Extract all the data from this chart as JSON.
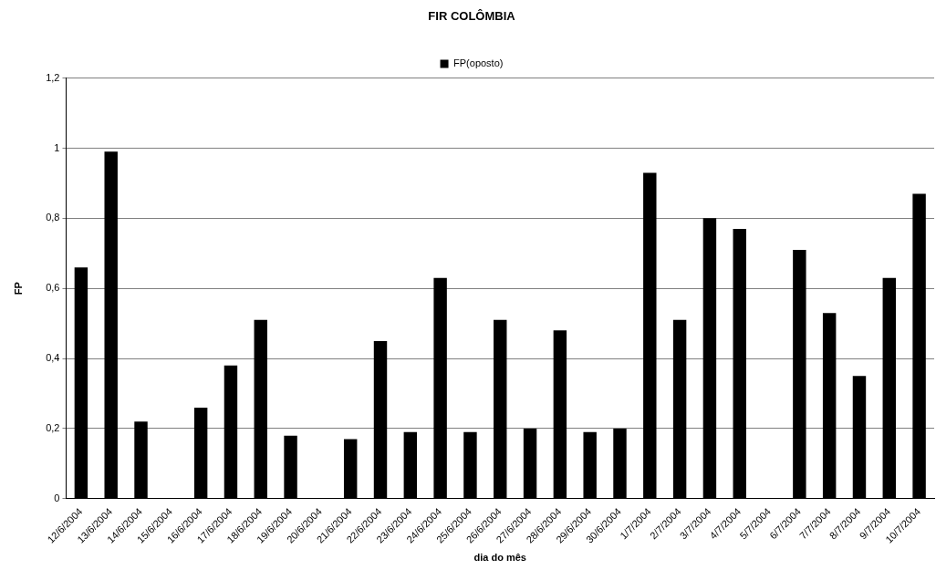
{
  "chart_data": {
    "type": "bar",
    "title": "FIR COLÔMBIA",
    "xlabel": "dia do mês",
    "ylabel": "FP",
    "categories": [
      "12/6/2004",
      "13/6/2004",
      "14/6/2004",
      "15/6/2004",
      "16/6/2004",
      "17/6/2004",
      "18/6/2004",
      "19/6/2004",
      "20/6/2004",
      "21/6/2004",
      "22/6/2004",
      "23/6/2004",
      "24/6/2004",
      "25/6/2004",
      "26/6/2004",
      "27/6/2004",
      "28/6/2004",
      "29/6/2004",
      "30/6/2004",
      "1/7/2004",
      "2/7/2004",
      "3/7/2004",
      "4/7/2004",
      "5/7/2004",
      "6/7/2004",
      "7/7/2004",
      "8/7/2004",
      "9/7/2004",
      "10/7/2004"
    ],
    "series": [
      {
        "name": "FP(oposto)",
        "color": "#000000",
        "values": [
          0.66,
          0.99,
          0.22,
          null,
          0.26,
          0.38,
          0.51,
          0.18,
          null,
          0.17,
          0.45,
          0.19,
          0.63,
          0.19,
          0.51,
          0.2,
          0.48,
          0.19,
          0.2,
          0.93,
          0.51,
          0.8,
          0.77,
          null,
          0.71,
          0.53,
          0.35,
          0.63,
          0.87
        ]
      }
    ],
    "ylim": [
      0,
      1.2
    ],
    "yticks": [
      0,
      {
        "value": 0.2,
        "label": "0,2"
      },
      {
        "value": 0.4,
        "label": "0,4"
      },
      {
        "value": 0.6,
        "label": "0,6"
      },
      {
        "value": 0.8,
        "label": "0,8"
      },
      1,
      {
        "value": 1.2,
        "label": "1,2"
      }
    ],
    "grid": "y",
    "legend": "top"
  }
}
